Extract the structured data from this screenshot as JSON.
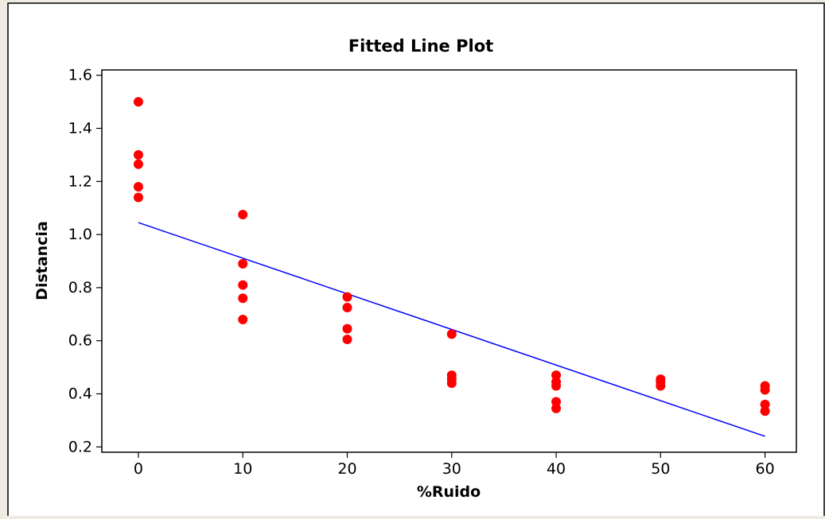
{
  "chart_data": {
    "type": "scatter",
    "title": "Fitted Line Plot",
    "xlabel": "%Ruido",
    "ylabel": "Distancia",
    "xlim": [
      -3.5,
      63
    ],
    "ylim": [
      0.18,
      1.62
    ],
    "xticks": [
      0,
      10,
      20,
      30,
      40,
      50,
      60
    ],
    "yticks": [
      0.2,
      0.4,
      0.6,
      0.8,
      1.0,
      1.2,
      1.4,
      1.6
    ],
    "ytick_labels": [
      "0.2",
      "0.4",
      "0.6",
      "0.8",
      "1.0",
      "1.2",
      "1.4",
      "1.6"
    ],
    "grid": false,
    "legend": "none",
    "colors": {
      "points": "#ff0000",
      "fit_line": "#0000ff",
      "page_background": "#efebe3",
      "plot_background": "#ffffff",
      "axis": "#000000"
    },
    "series": [
      {
        "type": "scatter",
        "points": [
          [
            0,
            1.5
          ],
          [
            0,
            1.3
          ],
          [
            0,
            1.265
          ],
          [
            0,
            1.18
          ],
          [
            0,
            1.14
          ],
          [
            10,
            1.075
          ],
          [
            10,
            0.89
          ],
          [
            10,
            0.81
          ],
          [
            10,
            0.76
          ],
          [
            10,
            0.68
          ],
          [
            20,
            0.765
          ],
          [
            20,
            0.725
          ],
          [
            20,
            0.645
          ],
          [
            20,
            0.605
          ],
          [
            30,
            0.625
          ],
          [
            30,
            0.47
          ],
          [
            30,
            0.455
          ],
          [
            30,
            0.44
          ],
          [
            40,
            0.47
          ],
          [
            40,
            0.445
          ],
          [
            40,
            0.43
          ],
          [
            40,
            0.37
          ],
          [
            40,
            0.345
          ],
          [
            50,
            0.455
          ],
          [
            50,
            0.445
          ],
          [
            50,
            0.43
          ],
          [
            60,
            0.43
          ],
          [
            60,
            0.415
          ],
          [
            60,
            0.36
          ],
          [
            60,
            0.335
          ]
        ]
      },
      {
        "type": "line",
        "points": [
          [
            0,
            1.045
          ],
          [
            60,
            0.24
          ]
        ]
      }
    ]
  }
}
